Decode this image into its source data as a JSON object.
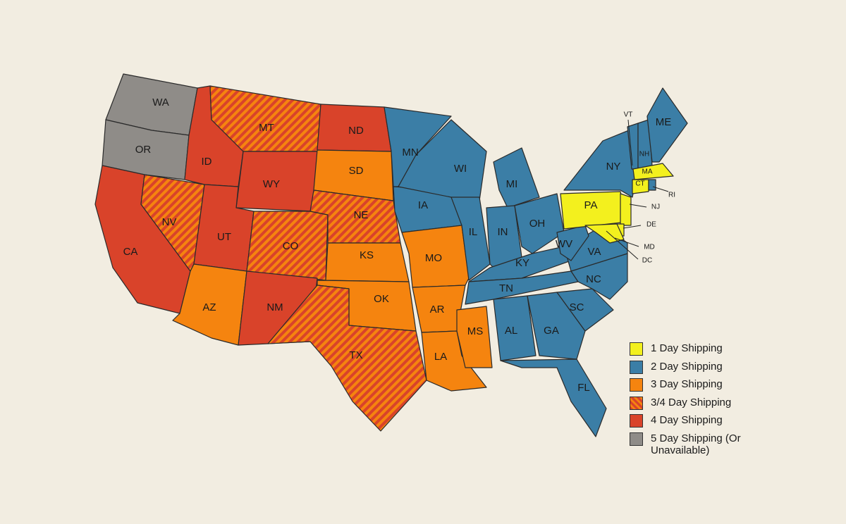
{
  "legend": [
    {
      "label": "1 Day Shipping",
      "color": "#f3f01e"
    },
    {
      "label": "2 Day Shipping",
      "color": "#3b7ea6"
    },
    {
      "label": "3 Day Shipping",
      "color": "#f5840f"
    },
    {
      "label": "3/4 Day Shipping",
      "color": "#f5840f",
      "stripe_color": "#d9432a"
    },
    {
      "label": "4 Day Shipping",
      "color": "#d9432a"
    },
    {
      "label": "5 Day Shipping (Or Unavailable)",
      "color": "#8f8c88"
    }
  ],
  "states": [
    {
      "label": "WA",
      "color": "#8f8c88"
    },
    {
      "label": "OR",
      "color": "#8f8c88"
    },
    {
      "label": "CA",
      "color": "#d9432a"
    },
    {
      "label": "NV",
      "color": "#f5840f",
      "stripe_color": "#d9432a"
    },
    {
      "label": "ID",
      "color": "#d9432a"
    },
    {
      "label": "MT",
      "color": "#f5840f",
      "stripe_color": "#d9432a"
    },
    {
      "label": "WY",
      "color": "#d9432a"
    },
    {
      "label": "UT",
      "color": "#d9432a"
    },
    {
      "label": "CO",
      "color": "#f5840f",
      "stripe_color": "#d9432a"
    },
    {
      "label": "AZ",
      "color": "#f5840f"
    },
    {
      "label": "NM",
      "color": "#d9432a"
    },
    {
      "label": "ND",
      "color": "#d9432a"
    },
    {
      "label": "SD",
      "color": "#f5840f"
    },
    {
      "label": "NE",
      "color": "#f5840f",
      "stripe_color": "#d9432a"
    },
    {
      "label": "KS",
      "color": "#f5840f"
    },
    {
      "label": "OK",
      "color": "#f5840f"
    },
    {
      "label": "TX",
      "color": "#f5840f",
      "stripe_color": "#d9432a"
    },
    {
      "label": "MN",
      "color": "#3b7ea6"
    },
    {
      "label": "IA",
      "color": "#3b7ea6"
    },
    {
      "label": "MO",
      "color": "#f5840f"
    },
    {
      "label": "AR",
      "color": "#f5840f"
    },
    {
      "label": "LA",
      "color": "#f5840f"
    },
    {
      "label": "MS",
      "color": "#f5840f"
    },
    {
      "label": "WI",
      "color": "#3b7ea6"
    },
    {
      "label": "IL",
      "color": "#3b7ea6"
    },
    {
      "label": "MI",
      "color": "#3b7ea6"
    },
    {
      "label": "IN",
      "color": "#3b7ea6"
    },
    {
      "label": "OH",
      "color": "#3b7ea6"
    },
    {
      "label": "KY",
      "color": "#3b7ea6"
    },
    {
      "label": "TN",
      "color": "#3b7ea6"
    },
    {
      "label": "AL",
      "color": "#3b7ea6"
    },
    {
      "label": "GA",
      "color": "#3b7ea6"
    },
    {
      "label": "FL",
      "color": "#3b7ea6"
    },
    {
      "label": "SC",
      "color": "#3b7ea6"
    },
    {
      "label": "NC",
      "color": "#3b7ea6"
    },
    {
      "label": "VA",
      "color": "#3b7ea6"
    },
    {
      "label": "WV",
      "color": "#3b7ea6"
    },
    {
      "label": "PA",
      "color": "#f3f01e"
    },
    {
      "label": "NY",
      "color": "#3b7ea6"
    },
    {
      "label": "NJ",
      "color": "#f3f01e"
    },
    {
      "label": "DE",
      "color": "#f3f01e"
    },
    {
      "label": "MD",
      "color": "#f3f01e"
    },
    {
      "label": "VT",
      "color": "#3b7ea6"
    },
    {
      "label": "NH",
      "color": "#3b7ea6"
    },
    {
      "label": "ME",
      "color": "#3b7ea6"
    },
    {
      "label": "MA",
      "color": "#f3f01e"
    },
    {
      "label": "CT",
      "color": "#f3f01e"
    },
    {
      "label": "RI",
      "color": "#3b7ea6"
    },
    {
      "label": "DC",
      "color": "#f3f01e"
    }
  ]
}
